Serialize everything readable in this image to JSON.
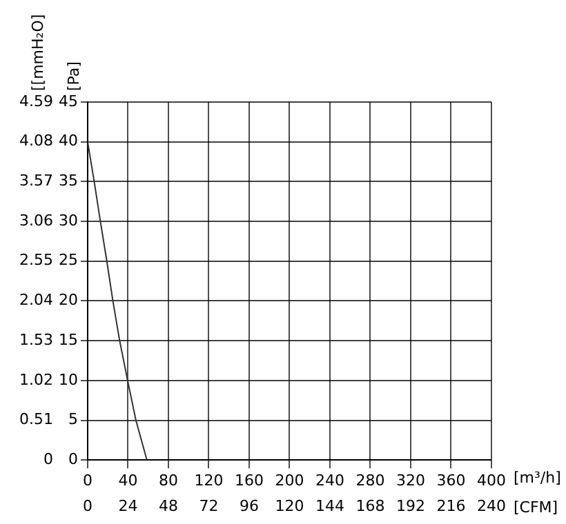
{
  "chart_data": {
    "type": "line",
    "x": [
      0,
      6.5,
      12.6,
      19,
      25,
      31.7,
      39.6,
      47.8,
      58.7
    ],
    "series": [
      {
        "color": "#333333",
        "values": [
          40,
          35,
          30,
          25,
          20,
          15,
          10,
          5,
          0
        ]
      }
    ],
    "xlabel": "[m³/h]",
    "x2label": "[CFM]",
    "ylabel": "[Pa]",
    "y2label": "[[mmH₂O]",
    "xlim": [
      0,
      400
    ],
    "xticks": [
      0,
      40,
      80,
      120,
      160,
      200,
      240,
      280,
      320,
      360,
      400
    ],
    "x2lim": [
      0,
      240
    ],
    "x2ticks": [
      0,
      24,
      48,
      72,
      96,
      120,
      144,
      168,
      192,
      216,
      240
    ],
    "ylim": [
      0,
      45
    ],
    "yticks": [
      0,
      5,
      10,
      15,
      20,
      25,
      30,
      35,
      40,
      45
    ],
    "y2lim": [
      0,
      4.59
    ],
    "y2ticks": [
      0,
      0.51,
      1.02,
      1.53,
      2.04,
      2.55,
      3.06,
      3.57,
      4.08,
      4.59
    ],
    "grid": true,
    "legend": false,
    "marker": "none",
    "line_style": "solid"
  }
}
